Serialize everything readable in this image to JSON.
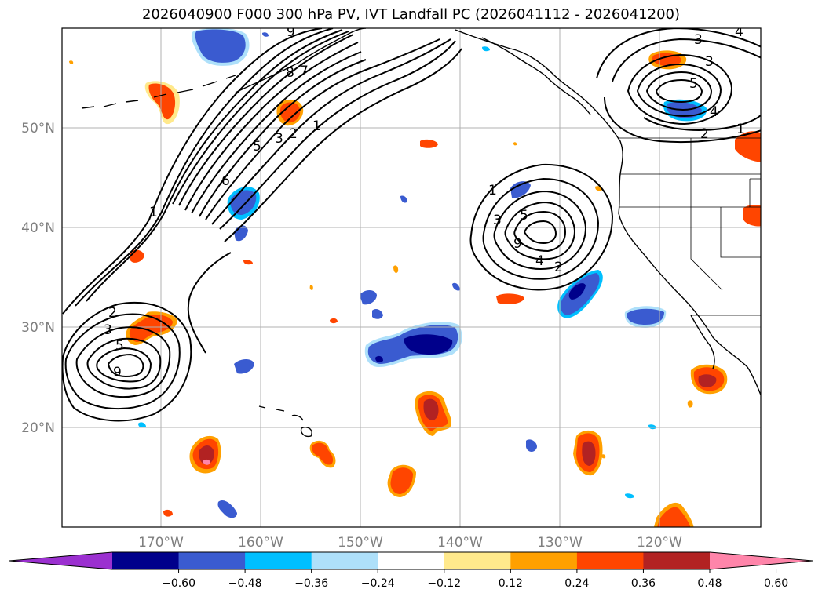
{
  "title": "2026040900 F000 300 hPa PV, IVT Landfall PC (2026041112 - 2026041200)",
  "lat_labels": [
    "50°N",
    "40°N",
    "30°N",
    "20°N"
  ],
  "lon_labels": [
    "170°W",
    "160°W",
    "150°W",
    "140°W",
    "130°W",
    "120°W"
  ],
  "colorbar": {
    "ticks": [
      "−0.60",
      "−0.48",
      "−0.36",
      "−0.24",
      "−0.12",
      "0.12",
      "0.24",
      "0.36",
      "0.48",
      "0.60"
    ],
    "colors": [
      "#9b30d0",
      "#00008b",
      "#3a5bd0",
      "#00bfff",
      "#aee0fa",
      "#ffffff",
      "#ffe98c",
      "#ffa000",
      "#ff4500",
      "#b22222",
      "#ff85aa"
    ]
  },
  "contour_labels": {
    "west": [
      "9",
      "8",
      "7",
      "6",
      "5",
      "3",
      "2",
      "1",
      "1"
    ],
    "southwest": [
      "2",
      "3",
      "5",
      "9"
    ],
    "central": [
      "1",
      "3",
      "5",
      "9",
      "4",
      "2"
    ],
    "northeast": [
      "3",
      "3",
      "5",
      "4",
      "2",
      "1",
      "4"
    ]
  },
  "colors": {
    "contour": "#000000",
    "grid": "#b0b0b0",
    "coast": "#000000"
  }
}
